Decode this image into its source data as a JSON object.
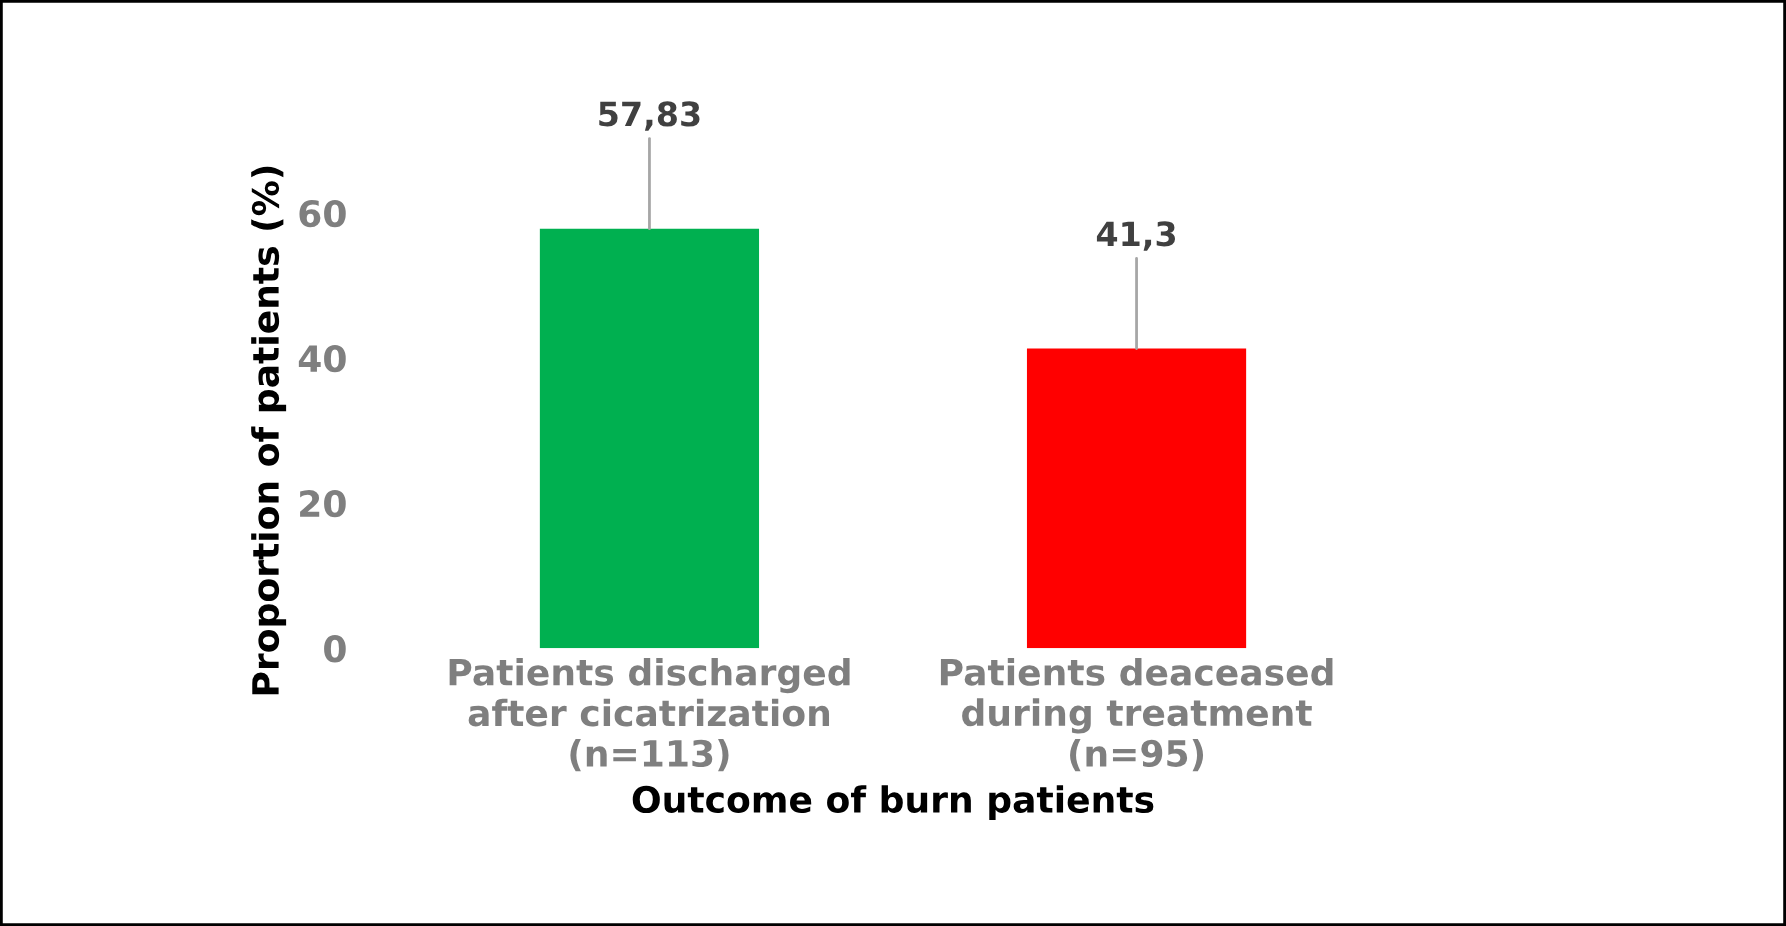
{
  "chart_data": {
    "type": "bar",
    "xlabel": "Outcome of burn patients",
    "ylabel": "Proportion of patients (%)",
    "categories": [
      "Patients discharged\nafter cicatrization\n(n=113)",
      "Patients deaceased\nduring treatment\n(n=95)"
    ],
    "values": [
      57.83,
      41.3
    ],
    "colors": [
      "#00b050",
      "#ff0000"
    ],
    "value_labels": [
      "57,83",
      "41,3"
    ],
    "ylim": [
      0,
      60
    ],
    "yticks": [
      0,
      20,
      40,
      60
    ],
    "grid": false,
    "legend": false
  }
}
